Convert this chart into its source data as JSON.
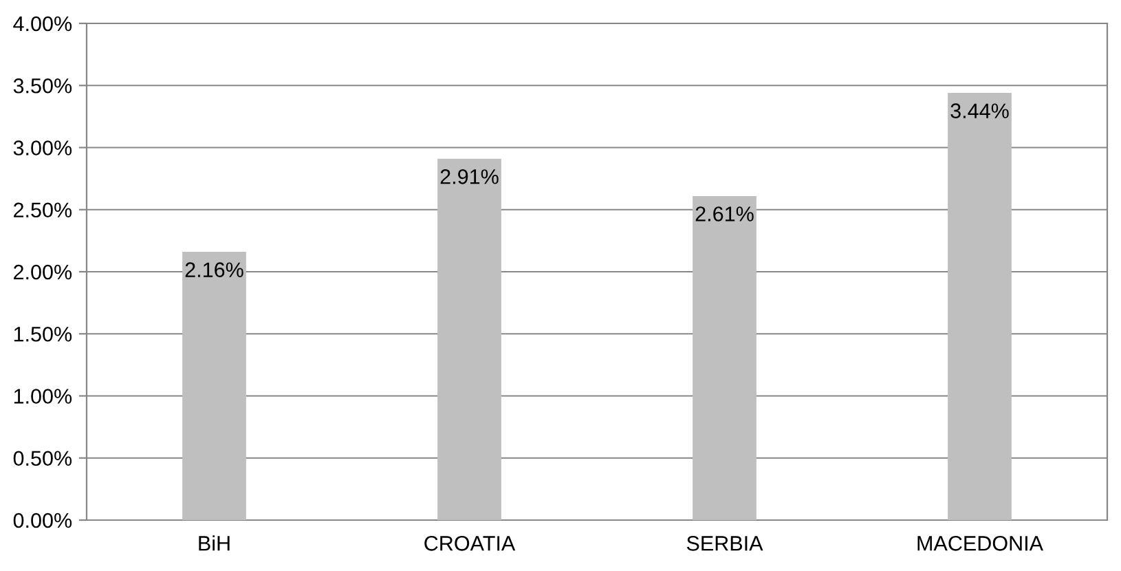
{
  "chart_data": {
    "type": "bar",
    "categories": [
      "BiH",
      "CROATIA",
      "SERBIA",
      "MACEDONIA"
    ],
    "values": [
      2.16,
      2.91,
      2.61,
      3.44
    ],
    "value_labels": [
      "2.16%",
      "2.91%",
      "2.61%",
      "3.44%"
    ],
    "color": "#bfbfbf",
    "ylim": [
      0,
      4
    ],
    "yticks": [
      {
        "value": 0,
        "label": "0.00%"
      },
      {
        "value": 0.5,
        "label": "0.50%"
      },
      {
        "value": 1,
        "label": "1.00%"
      },
      {
        "value": 1.5,
        "label": "1.50%"
      },
      {
        "value": 2,
        "label": "2.00%"
      },
      {
        "value": 2.5,
        "label": "2.50%"
      },
      {
        "value": 3,
        "label": "3.00%"
      },
      {
        "value": 3.5,
        "label": "3.50%"
      },
      {
        "value": 4,
        "label": "4.00%"
      }
    ],
    "grid": "y"
  }
}
